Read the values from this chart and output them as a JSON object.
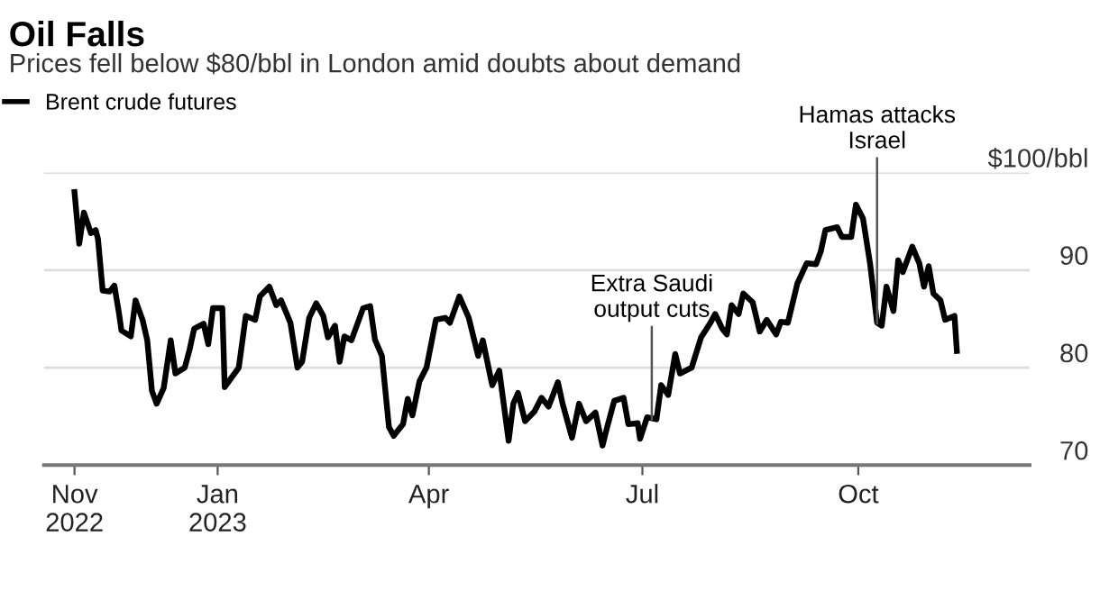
{
  "chart_data": {
    "type": "line",
    "title": "Oil Falls",
    "subtitle": "Prices fell below $80/bbl in London amid doubts about demand",
    "series": [
      {
        "name": "Brent crude futures",
        "color": "#000000",
        "x": [
          "2022-11-01",
          "2022-11-03",
          "2022-11-05",
          "2022-11-08",
          "2022-11-10",
          "2022-11-11",
          "2022-11-13",
          "2022-11-16",
          "2022-11-18",
          "2022-11-20",
          "2022-11-21",
          "2022-11-25",
          "2022-11-27",
          "2022-11-30",
          "2022-12-02",
          "2022-12-04",
          "2022-12-06",
          "2022-12-09",
          "2022-12-12",
          "2022-12-14",
          "2022-12-18",
          "2022-12-20",
          "2022-12-22",
          "2022-12-26",
          "2022-12-28",
          "2022-12-30",
          "2023-01-03",
          "2023-01-04",
          "2023-01-10",
          "2023-01-13",
          "2023-01-17",
          "2023-01-19",
          "2023-01-23",
          "2023-01-26",
          "2023-01-28",
          "2023-02-01",
          "2023-02-04",
          "2023-02-06",
          "2023-02-09",
          "2023-02-12",
          "2023-02-15",
          "2023-02-17",
          "2023-02-20",
          "2023-02-22",
          "2023-02-24",
          "2023-02-27",
          "2023-03-04",
          "2023-03-07",
          "2023-03-09",
          "2023-03-12",
          "2023-03-15",
          "2023-03-17",
          "2023-03-21",
          "2023-03-23",
          "2023-03-25",
          "2023-03-28",
          "2023-03-31",
          "2023-04-04",
          "2023-04-08",
          "2023-04-10",
          "2023-04-14",
          "2023-04-18",
          "2023-04-22",
          "2023-04-24",
          "2023-04-28",
          "2023-05-01",
          "2023-05-03",
          "2023-05-05",
          "2023-05-07",
          "2023-05-09",
          "2023-05-12",
          "2023-05-16",
          "2023-05-19",
          "2023-05-22",
          "2023-05-26",
          "2023-05-28",
          "2023-06-01",
          "2023-06-04",
          "2023-06-07",
          "2023-06-11",
          "2023-06-14",
          "2023-06-16",
          "2023-06-19",
          "2023-06-23",
          "2023-06-25",
          "2023-06-29",
          "2023-06-30",
          "2023-07-03",
          "2023-07-07",
          "2023-07-09",
          "2023-07-12",
          "2023-07-15",
          "2023-07-17",
          "2023-07-22",
          "2023-07-26",
          "2023-07-30",
          "2023-08-01",
          "2023-08-04",
          "2023-08-06",
          "2023-08-08",
          "2023-08-11",
          "2023-08-13",
          "2023-08-17",
          "2023-08-20",
          "2023-08-23",
          "2023-08-27",
          "2023-08-29",
          "2023-09-01",
          "2023-09-05",
          "2023-09-09",
          "2023-09-13",
          "2023-09-15",
          "2023-09-17",
          "2023-09-22",
          "2023-09-24",
          "2023-09-28",
          "2023-09-30",
          "2023-10-03",
          "2023-10-06",
          "2023-10-09",
          "2023-10-11",
          "2023-10-13",
          "2023-10-16",
          "2023-10-18",
          "2023-10-20",
          "2023-10-24",
          "2023-10-27",
          "2023-10-29",
          "2023-10-31",
          "2023-11-02",
          "2023-11-05",
          "2023-11-07",
          "2023-11-11",
          "2023-11-12"
        ],
        "values": [
          98.0,
          92.7,
          95.9,
          93.8,
          94.1,
          93.2,
          87.9,
          87.8,
          88.4,
          85.5,
          83.8,
          83.2,
          86.9,
          84.9,
          82.8,
          77.6,
          76.3,
          77.9,
          82.8,
          79.4,
          80.0,
          81.8,
          84.0,
          84.5,
          82.4,
          86.1,
          86.1,
          78.0,
          80.0,
          85.3,
          84.9,
          87.3,
          88.3,
          86.4,
          86.9,
          84.6,
          80.0,
          80.6,
          85.1,
          86.6,
          85.3,
          83.1,
          84.3,
          80.6,
          83.2,
          82.8,
          86.1,
          86.3,
          82.9,
          81.2,
          73.9,
          73.0,
          74.2,
          76.8,
          75.1,
          78.6,
          80.0,
          84.9,
          85.1,
          84.6,
          87.3,
          85.1,
          81.2,
          82.8,
          78.2,
          79.7,
          76.1,
          72.5,
          76.3,
          77.4,
          74.5,
          75.5,
          76.9,
          76.0,
          78.5,
          76.3,
          72.8,
          76.3,
          74.5,
          75.4,
          72.0,
          73.9,
          76.6,
          76.9,
          74.2,
          74.3,
          72.7,
          74.9,
          74.7,
          78.2,
          77.2,
          81.4,
          79.4,
          80.0,
          83.1,
          84.6,
          85.5,
          84.0,
          83.4,
          86.4,
          85.5,
          87.6,
          86.7,
          83.7,
          84.9,
          83.4,
          84.7,
          84.6,
          88.6,
          90.7,
          90.6,
          91.9,
          94.1,
          94.4,
          93.4,
          93.4,
          96.7,
          95.3,
          90.7,
          84.6,
          84.3,
          88.3,
          85.8,
          91.0,
          89.8,
          92.4,
          90.7,
          88.3,
          90.4,
          87.6,
          86.9,
          84.9,
          85.3,
          81.7
        ]
      }
    ],
    "xlim": [
      "2022-10-19",
      "2023-12-13"
    ],
    "xticks": [
      {
        "value": "2022-11-01",
        "label": "Nov\n2022"
      },
      {
        "value": "2023-01-01",
        "label": "Jan\n2023"
      },
      {
        "value": "2023-04-01",
        "label": "Apr"
      },
      {
        "value": "2023-07-01",
        "label": "Jul"
      },
      {
        "value": "2023-10-01",
        "label": "Oct"
      }
    ],
    "ylim": [
      70,
      100
    ],
    "yticks": [
      70,
      80,
      90,
      {
        "value": 100,
        "label": "$100/bbl"
      }
    ],
    "grid": "y",
    "legend": "top left",
    "line_style": "solid",
    "marker": "none",
    "annotations": [
      {
        "text": "Extra Saudi\noutput cuts",
        "x": "2023-07-05",
        "y": 74.7
      },
      {
        "text": "Hamas attacks\nIsrael",
        "x": "2023-10-09",
        "y": 84.5
      }
    ]
  }
}
